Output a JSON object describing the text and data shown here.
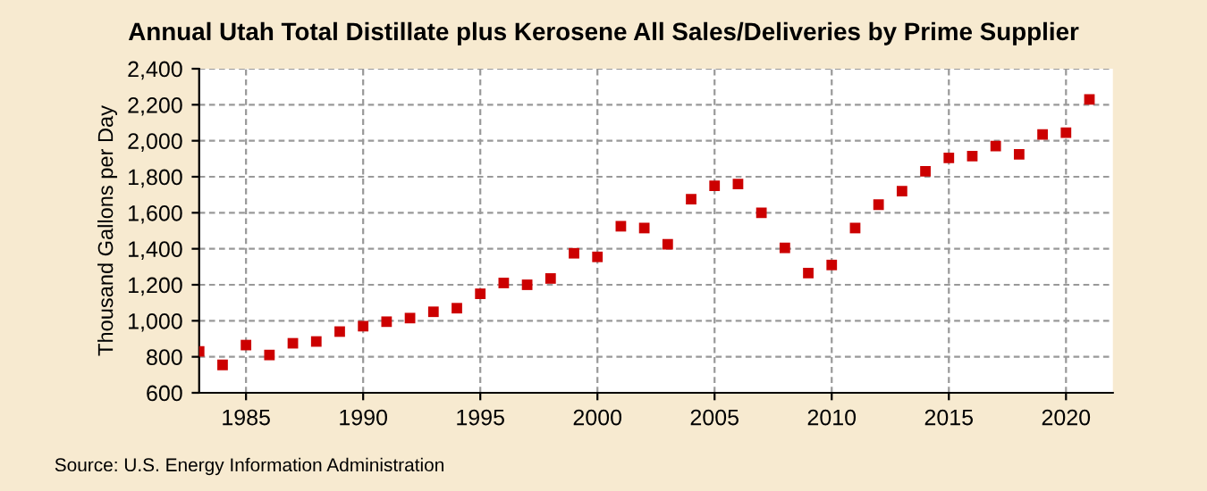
{
  "chart_data": {
    "type": "scatter",
    "title": "Annual Utah Total Distillate plus Kerosene All Sales/Deliveries by Prime Supplier",
    "ylabel": "Thousand Gallons per Day",
    "x": [
      1983,
      1984,
      1985,
      1986,
      1987,
      1988,
      1989,
      1990,
      1991,
      1992,
      1993,
      1994,
      1995,
      1996,
      1997,
      1998,
      1999,
      2000,
      2001,
      2002,
      2003,
      2004,
      2005,
      2006,
      2007,
      2008,
      2009,
      2010,
      2011,
      2012,
      2013,
      2014,
      2015,
      2016,
      2017,
      2018,
      2019,
      2020,
      2021
    ],
    "series": [
      {
        "color": "#cc0000",
        "values": [
          830,
          755,
          865,
          810,
          875,
          885,
          940,
          970,
          995,
          1015,
          1050,
          1070,
          1150,
          1210,
          1200,
          1235,
          1375,
          1355,
          1525,
          1515,
          1425,
          1675,
          1750,
          1760,
          1600,
          1405,
          1265,
          1310,
          1515,
          1645,
          1720,
          1830,
          1905,
          1915,
          1970,
          1925,
          2035,
          2045,
          2230
        ]
      }
    ],
    "xlim": [
      1983,
      2022
    ],
    "xticks": [
      1985,
      1990,
      1995,
      2000,
      2005,
      2010,
      2015,
      2020
    ],
    "ylim": [
      600,
      2400
    ],
    "yticks": [
      {
        "value": 600,
        "label": "600"
      },
      {
        "value": 800,
        "label": "800"
      },
      {
        "value": 1000,
        "label": "1,000"
      },
      {
        "value": 1200,
        "label": "1,200"
      },
      {
        "value": 1400,
        "label": "1,400"
      },
      {
        "value": 1600,
        "label": "1,600"
      },
      {
        "value": 1800,
        "label": "1,800"
      },
      {
        "value": 2000,
        "label": "2,000"
      },
      {
        "value": 2200,
        "label": "2,200"
      },
      {
        "value": 2400,
        "label": "2,400"
      }
    ],
    "grid": true,
    "marker": "square",
    "annotations": [
      "Source: U.S. Energy Information Administration"
    ]
  }
}
